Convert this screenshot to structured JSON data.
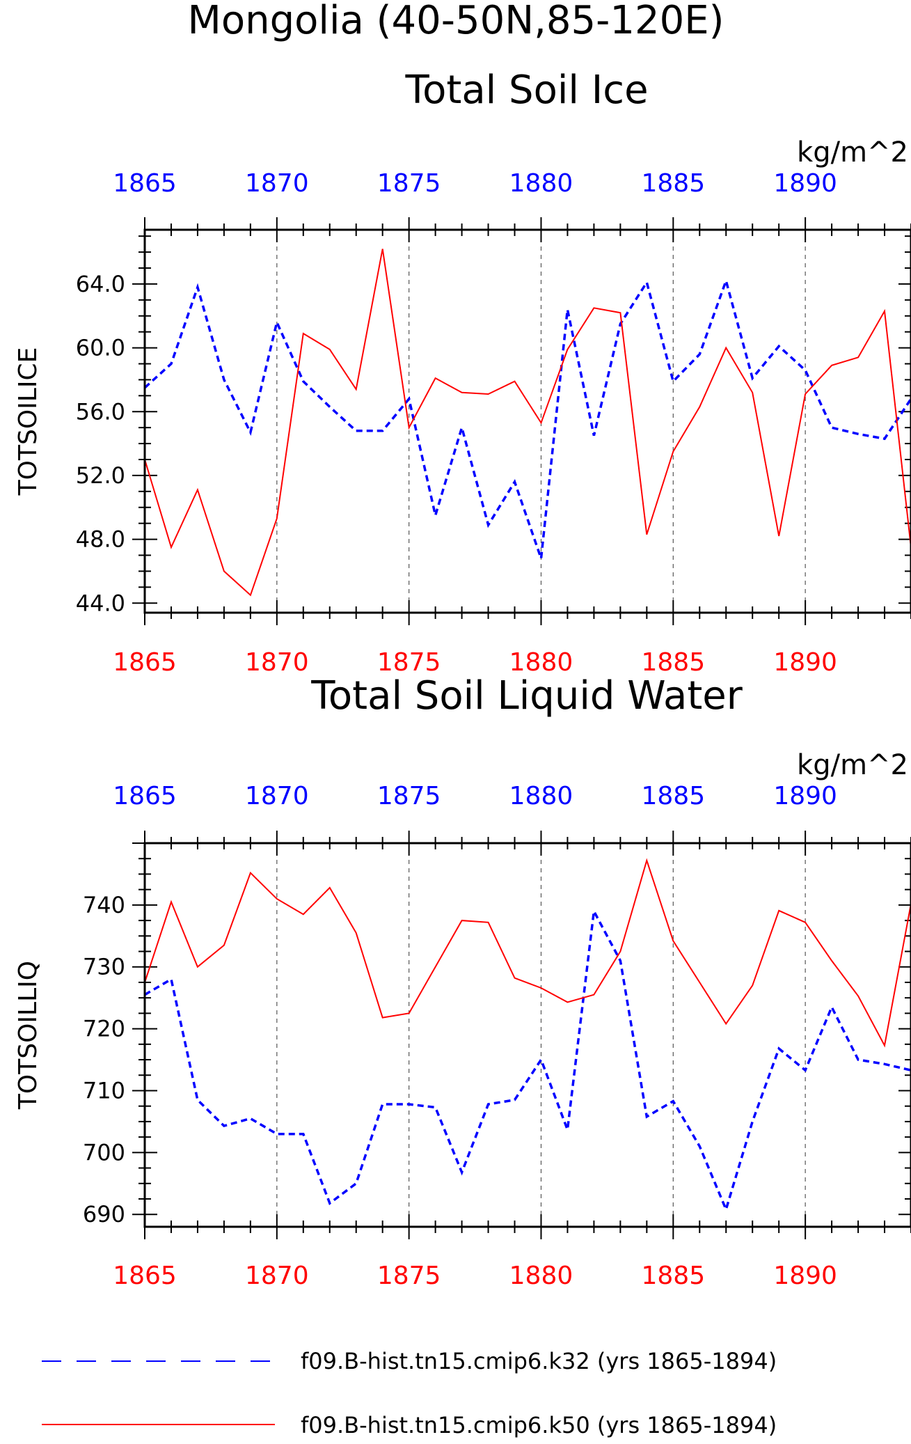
{
  "figure_title": "Mongolia (40-50N,85-120E)",
  "colors": {
    "k32": "#0000ff",
    "k50": "#ff0000",
    "axis": "#000000",
    "grid": "#555555"
  },
  "legend": [
    {
      "label": "f09.B-hist.tn15.cmip6.k32 (yrs 1865-1894)",
      "color": "#0000ff",
      "style": "dashed"
    },
    {
      "label": "f09.B-hist.tn15.cmip6.k50 (yrs 1865-1894)",
      "color": "#ff0000",
      "style": "solid"
    }
  ],
  "chart_data": [
    {
      "type": "line",
      "title": "Total Soil Ice",
      "ylabel": "TOTSOILICE",
      "units": "kg/m^2",
      "x": [
        1865,
        1866,
        1867,
        1868,
        1869,
        1870,
        1871,
        1872,
        1873,
        1874,
        1875,
        1876,
        1877,
        1878,
        1879,
        1880,
        1881,
        1882,
        1883,
        1884,
        1885,
        1886,
        1887,
        1888,
        1889,
        1890,
        1891,
        1892,
        1893,
        1894
      ],
      "xlim": [
        1865,
        1894
      ],
      "ylim": [
        43.4,
        67.4
      ],
      "yticks": [
        "44.0",
        "48.0",
        "52.0",
        "56.0",
        "60.0",
        "64.0"
      ],
      "xticks": [
        "1865",
        "1870",
        "1875",
        "1880",
        "1885",
        "1890"
      ],
      "series": [
        {
          "name": "f09.B-hist.tn15.cmip6.k32",
          "color": "#0000ff",
          "dash": true,
          "values": [
            57.5,
            59.0,
            63.8,
            58.0,
            54.7,
            61.6,
            57.9,
            56.3,
            54.8,
            54.8,
            56.8,
            49.5,
            55.0,
            48.9,
            51.6,
            46.8,
            62.4,
            54.5,
            61.5,
            64.1,
            57.9,
            59.6,
            64.2,
            58.1,
            60.1,
            58.6,
            55.0,
            54.6,
            54.3,
            56.8
          ]
        },
        {
          "name": "f09.B-hist.tn15.cmip6.k50",
          "color": "#ff0000",
          "dash": false,
          "values": [
            53.0,
            47.5,
            51.1,
            46.0,
            44.5,
            49.3,
            60.9,
            59.9,
            57.4,
            66.2,
            55.0,
            58.1,
            57.2,
            57.1,
            57.9,
            55.3,
            59.9,
            62.5,
            62.2,
            48.3,
            53.5,
            56.3,
            60.0,
            57.2,
            48.2,
            57.1,
            58.9,
            59.4,
            62.3,
            47.5
          ]
        }
      ]
    },
    {
      "type": "line",
      "title": "Total Soil Liquid Water",
      "ylabel": "TOTSOILLIQ",
      "units": "kg/m^2",
      "x": [
        1865,
        1866,
        1867,
        1868,
        1869,
        1870,
        1871,
        1872,
        1873,
        1874,
        1875,
        1876,
        1877,
        1878,
        1879,
        1880,
        1881,
        1882,
        1883,
        1884,
        1885,
        1886,
        1887,
        1888,
        1889,
        1890,
        1891,
        1892,
        1893,
        1894
      ],
      "xlim": [
        1865,
        1894
      ],
      "ylim": [
        688,
        750
      ],
      "yticks": [
        "690",
        "700",
        "710",
        "720",
        "730",
        "740"
      ],
      "xticks": [
        "1865",
        "1870",
        "1875",
        "1880",
        "1885",
        "1890"
      ],
      "series": [
        {
          "name": "f09.B-hist.tn15.cmip6.k32",
          "color": "#0000ff",
          "dash": true,
          "values": [
            725.5,
            728.0,
            708.5,
            704.3,
            705.5,
            703.0,
            703.0,
            691.8,
            695.0,
            707.8,
            707.8,
            707.3,
            696.8,
            707.8,
            708.5,
            715.0,
            703.7,
            739.0,
            731.0,
            705.8,
            708.3,
            701.0,
            690.8,
            705.0,
            716.8,
            713.3,
            723.5,
            715.0,
            714.3,
            713.3
          ]
        },
        {
          "name": "f09.B-hist.tn15.cmip6.k50",
          "color": "#ff0000",
          "dash": false,
          "values": [
            727.5,
            740.5,
            730.0,
            733.5,
            745.2,
            741.0,
            738.5,
            742.8,
            735.5,
            721.8,
            722.5,
            730.0,
            737.5,
            737.2,
            728.2,
            726.6,
            724.3,
            725.5,
            732.5,
            747.2,
            734.2,
            727.5,
            720.8,
            727.0,
            739.1,
            737.2,
            731.0,
            725.3,
            717.3,
            740.2
          ]
        }
      ]
    }
  ]
}
